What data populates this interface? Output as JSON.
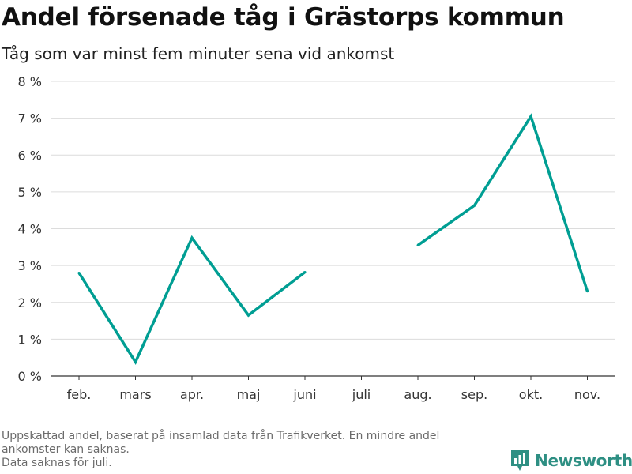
{
  "title": "Andel försenade tåg i Grästorps kommun",
  "subtitle": "Tåg som var minst fem minuter sena vid ankomst",
  "chart_data": {
    "type": "line",
    "categories": [
      "feb.",
      "mars",
      "apr.",
      "maj",
      "juni",
      "juli",
      "aug.",
      "sep.",
      "okt.",
      "nov."
    ],
    "series": [
      {
        "values": [
          2.8,
          0.38,
          3.75,
          1.65,
          2.82,
          null,
          3.55,
          4.63,
          7.05,
          2.3
        ]
      }
    ],
    "ylim": [
      0,
      8
    ],
    "yticks": [
      0,
      1,
      2,
      3,
      4,
      5,
      6,
      7,
      8
    ],
    "ytick_labels": [
      "0 %",
      "1 %",
      "2 %",
      "3 %",
      "4 %",
      "5 %",
      "6 %",
      "7 %",
      "8 %"
    ],
    "grid": true,
    "line_color": "#009e93"
  },
  "footnote": {
    "line1": "Uppskattad andel, baserat på insamlad data från Trafikverket. En mindre andel",
    "line2": "ankomster kan saknas.",
    "line3": "Data saknas för juli."
  },
  "brand": {
    "name": "Newsworthy",
    "color": "#2e8f83",
    "icon": "newsworthy-logo-icon"
  }
}
